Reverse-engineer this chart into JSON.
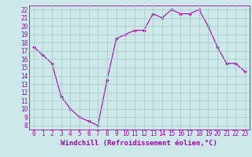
{
  "x": [
    0,
    1,
    2,
    3,
    4,
    5,
    6,
    7,
    8,
    9,
    10,
    11,
    12,
    13,
    14,
    15,
    16,
    17,
    18,
    19,
    20,
    21,
    22,
    23
  ],
  "y": [
    17.5,
    16.5,
    15.5,
    11.5,
    10.0,
    9.0,
    8.5,
    8.0,
    13.5,
    18.5,
    19.0,
    19.5,
    19.5,
    21.5,
    21.0,
    22.0,
    21.5,
    21.5,
    22.0,
    20.0,
    17.5,
    15.5,
    15.5,
    14.5
  ],
  "line_color": "#aa00aa",
  "marker": "D",
  "marker_size": 1.8,
  "bg_color": "#cce8e8",
  "grid_color": "#aacccc",
  "ylabel_ticks": [
    8,
    9,
    10,
    11,
    12,
    13,
    14,
    15,
    16,
    17,
    18,
    19,
    20,
    21,
    22
  ],
  "xlabel": "Windchill (Refroidissement éolien,°C)",
  "xlim": [
    -0.5,
    23.5
  ],
  "ylim": [
    7.5,
    22.5
  ],
  "xlabel_fontsize": 6.5,
  "ytick_fontsize": 5.5,
  "xtick_fontsize": 5.5
}
